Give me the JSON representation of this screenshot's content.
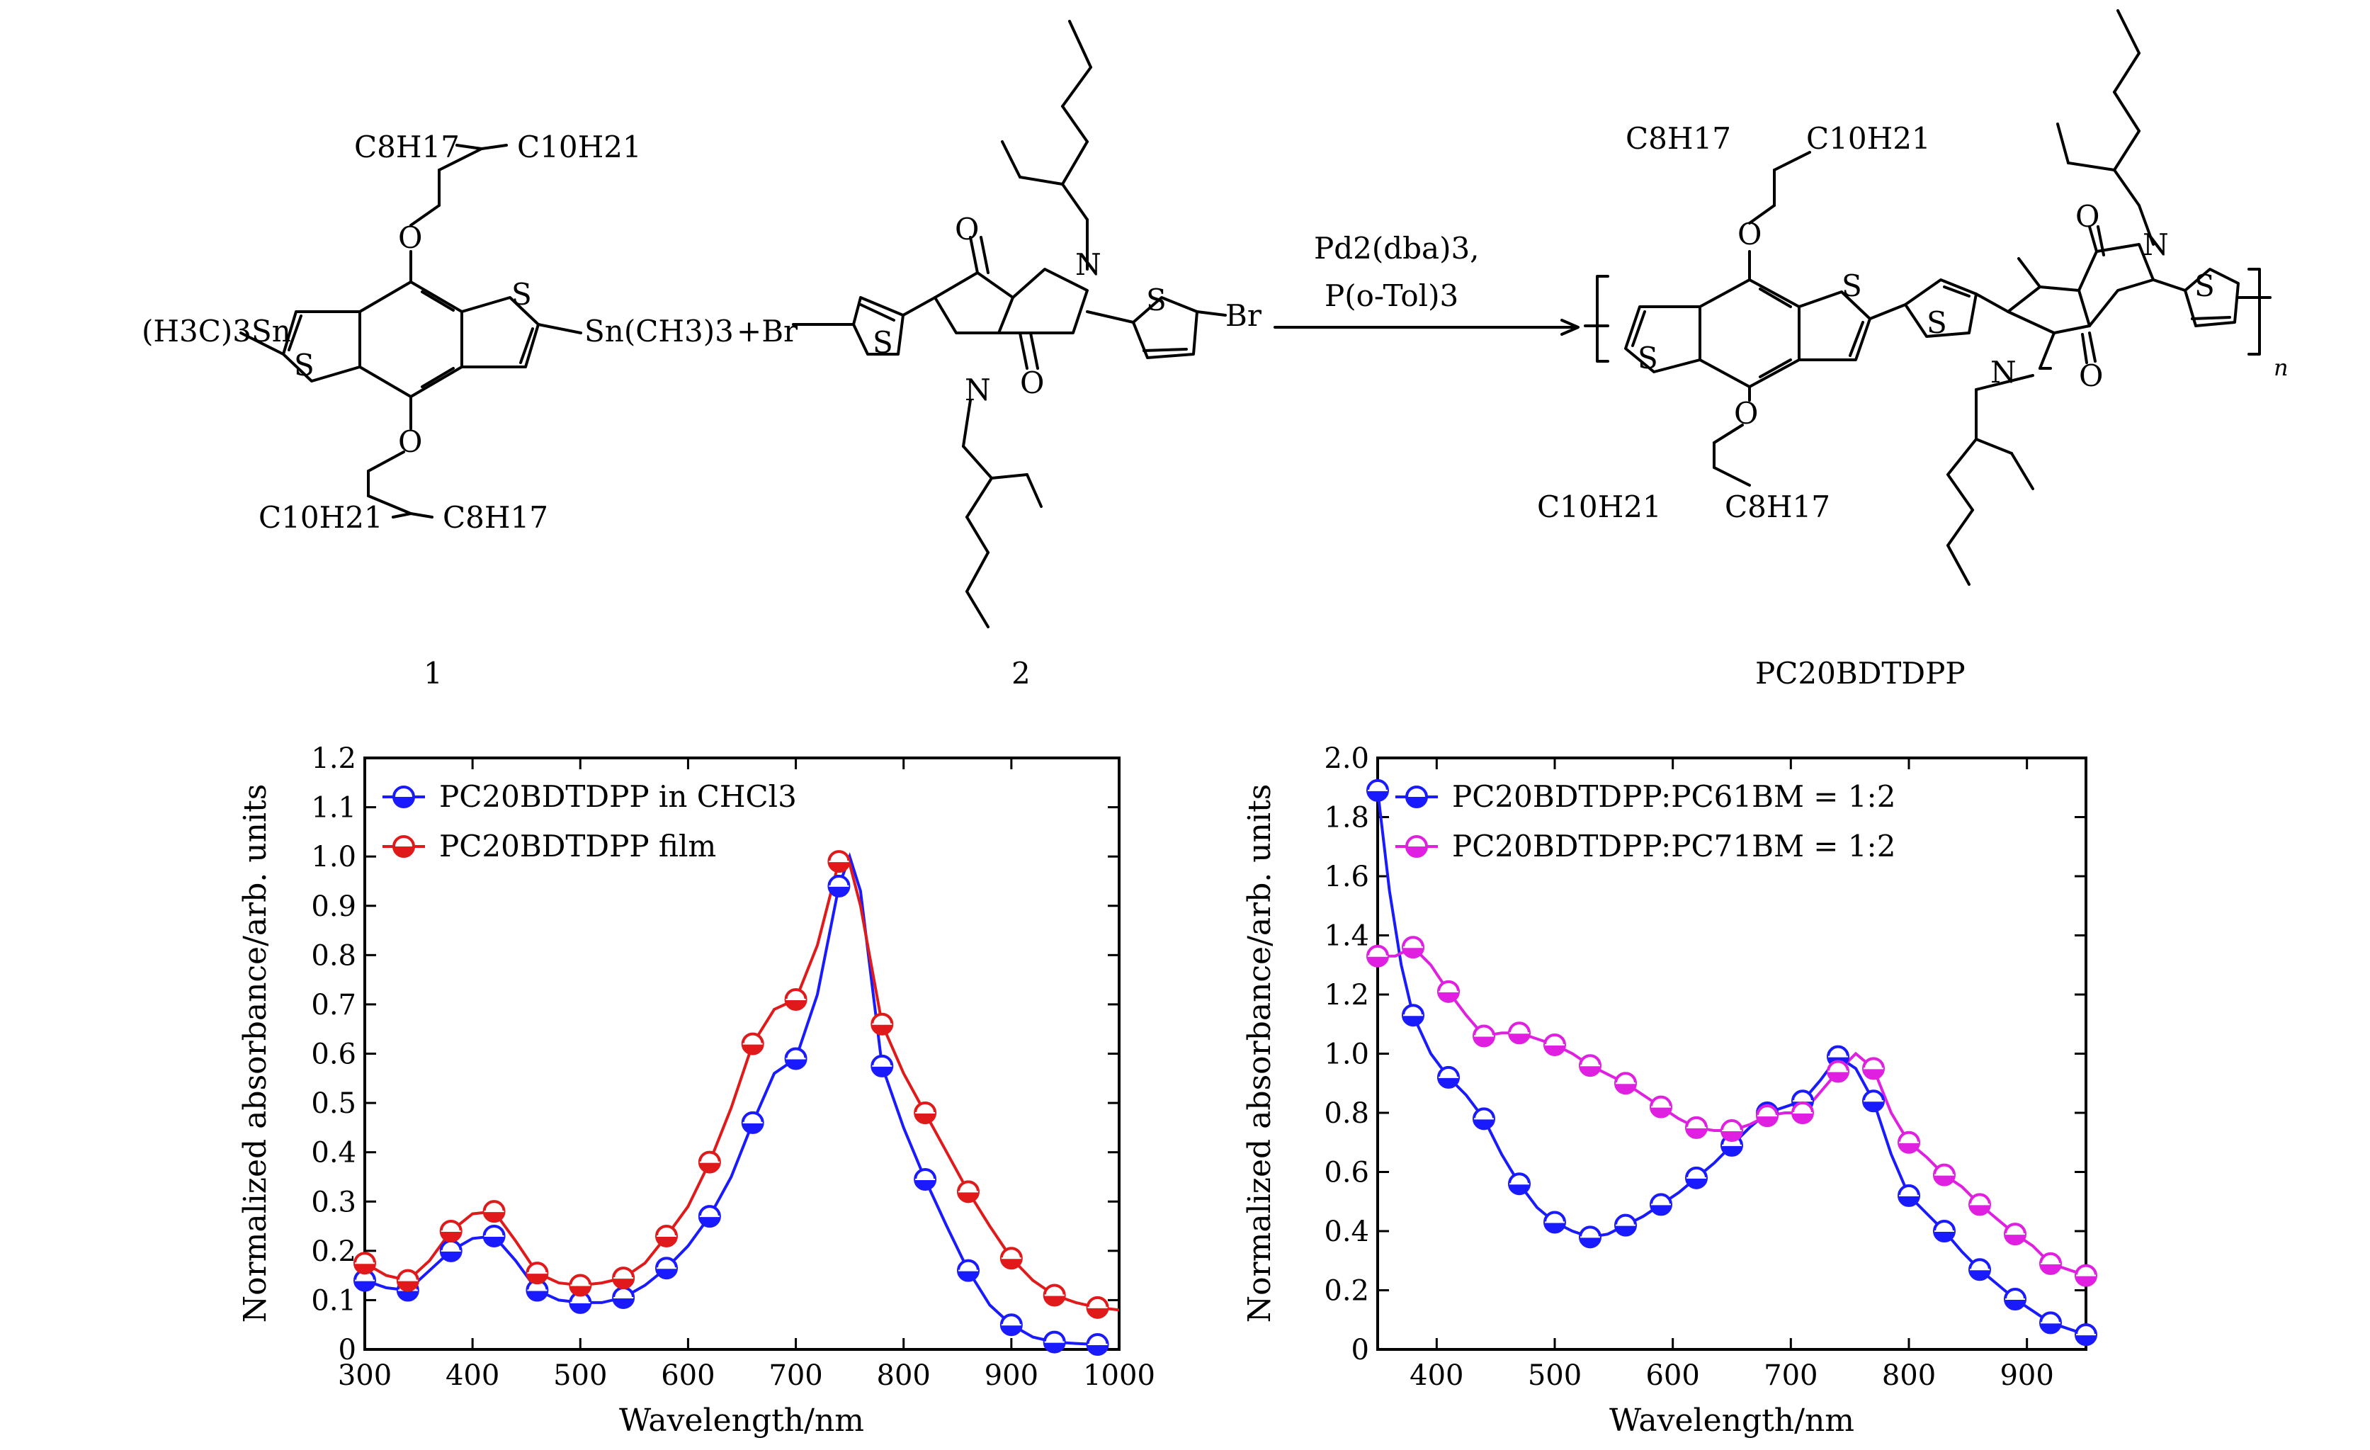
{
  "scheme": {
    "reactant1": {
      "number": "1",
      "top_left": "C8H17",
      "top_right": "C10H21",
      "bottom_left": "C10H21",
      "bottom_right": "C8H17",
      "left_group": "(H3C)3Sn",
      "right_group": "Sn(CH3)3"
    },
    "plus_br": "+Br",
    "reactant2": {
      "number": "2",
      "br_right": "Br"
    },
    "conditions": {
      "line1": "Pd2(dba)3,",
      "line2": "P(o-Tol)3"
    },
    "product": {
      "name": "PC20BDTDPP",
      "top_left": "C8H17",
      "top_right": "C10H21",
      "bottom_left": "C10H21",
      "bottom_right": "C8H17",
      "subscript_n": "n"
    },
    "atoms": {
      "S": "S",
      "O": "O",
      "N": "N"
    }
  },
  "chart_data": [
    {
      "type": "line",
      "xlabel": "Wavelength/nm",
      "ylabel": "Normalized absorbance/arb. units",
      "xlim": [
        300,
        1000
      ],
      "ylim": [
        0,
        1.2
      ],
      "xticks": [
        300,
        400,
        500,
        600,
        700,
        800,
        900,
        1000
      ],
      "yticks": [
        0,
        0.1,
        0.2,
        0.3,
        0.4,
        0.5,
        0.6,
        0.7,
        0.8,
        0.9,
        1.0,
        1.1,
        1.2
      ],
      "legend_position": "top-left",
      "series": [
        {
          "name": "PC20BDTDPP in CHCl3",
          "color": "#1a1aff",
          "marker": "half-filled-circle",
          "x": [
            300,
            340,
            380,
            420,
            460,
            500,
            540,
            580,
            620,
            660,
            700,
            740,
            780,
            820,
            860,
            900,
            940,
            980
          ],
          "y": [
            0.14,
            0.12,
            0.2,
            0.23,
            0.12,
            0.095,
            0.105,
            0.165,
            0.27,
            0.46,
            0.59,
            0.94,
            0.575,
            0.345,
            0.16,
            0.05,
            0.015,
            0.01
          ],
          "curve_x": [
            300,
            320,
            340,
            360,
            380,
            400,
            420,
            440,
            460,
            480,
            500,
            520,
            540,
            560,
            580,
            600,
            620,
            640,
            660,
            680,
            700,
            720,
            740,
            750,
            760,
            780,
            800,
            820,
            840,
            860,
            880,
            900,
            920,
            940,
            960,
            980
          ],
          "curve_y": [
            0.14,
            0.125,
            0.12,
            0.16,
            0.2,
            0.225,
            0.23,
            0.18,
            0.12,
            0.1,
            0.095,
            0.095,
            0.105,
            0.13,
            0.165,
            0.21,
            0.27,
            0.35,
            0.46,
            0.56,
            0.59,
            0.72,
            0.94,
            1.0,
            0.93,
            0.575,
            0.45,
            0.345,
            0.25,
            0.16,
            0.09,
            0.05,
            0.025,
            0.015,
            0.012,
            0.01
          ]
        },
        {
          "name": "PC20BDTDPP film",
          "color": "#e01a1a",
          "marker": "half-filled-circle",
          "x": [
            300,
            340,
            380,
            420,
            460,
            500,
            540,
            580,
            620,
            660,
            700,
            740,
            780,
            820,
            860,
            900,
            940,
            980
          ],
          "y": [
            0.175,
            0.14,
            0.24,
            0.28,
            0.155,
            0.13,
            0.145,
            0.23,
            0.38,
            0.62,
            0.71,
            0.99,
            0.66,
            0.48,
            0.32,
            0.185,
            0.11,
            0.085
          ],
          "curve_x": [
            300,
            320,
            340,
            360,
            380,
            400,
            420,
            440,
            460,
            480,
            500,
            520,
            540,
            560,
            580,
            600,
            620,
            640,
            660,
            680,
            700,
            720,
            740,
            750,
            760,
            780,
            800,
            820,
            840,
            860,
            880,
            900,
            920,
            940,
            960,
            980,
            1000
          ],
          "curve_y": [
            0.175,
            0.15,
            0.14,
            0.18,
            0.24,
            0.275,
            0.28,
            0.22,
            0.155,
            0.135,
            0.13,
            0.135,
            0.145,
            0.175,
            0.23,
            0.29,
            0.38,
            0.49,
            0.62,
            0.69,
            0.71,
            0.82,
            0.99,
            0.985,
            0.9,
            0.66,
            0.56,
            0.48,
            0.4,
            0.32,
            0.25,
            0.185,
            0.14,
            0.11,
            0.095,
            0.085,
            0.08
          ]
        }
      ]
    },
    {
      "type": "line",
      "xlabel": "Wavelength/nm",
      "ylabel": "Normalized absorbance/arb. units",
      "xlim": [
        350,
        950
      ],
      "ylim": [
        0,
        2.0
      ],
      "xticks": [
        400,
        500,
        600,
        700,
        800,
        900
      ],
      "yticks": [
        0,
        0.2,
        0.4,
        0.6,
        0.8,
        1.0,
        1.2,
        1.4,
        1.6,
        1.8,
        2.0
      ],
      "legend_position": "top-left",
      "series": [
        {
          "name": "PC20BDTDPP:PC61BM = 1:2",
          "color": "#1a1aff",
          "marker": "half-filled-circle",
          "x": [
            350,
            380,
            410,
            440,
            470,
            500,
            530,
            560,
            590,
            620,
            650,
            680,
            710,
            740,
            770,
            800,
            830,
            860,
            890,
            920,
            950
          ],
          "y": [
            1.89,
            1.13,
            0.92,
            0.78,
            0.56,
            0.43,
            0.38,
            0.42,
            0.49,
            0.58,
            0.69,
            0.8,
            0.84,
            0.99,
            0.84,
            0.52,
            0.4,
            0.27,
            0.17,
            0.09,
            0.05
          ],
          "curve_x": [
            350,
            360,
            370,
            380,
            395,
            410,
            425,
            440,
            455,
            470,
            485,
            500,
            515,
            530,
            545,
            560,
            575,
            590,
            605,
            620,
            635,
            650,
            665,
            680,
            695,
            710,
            725,
            740,
            755,
            770,
            785,
            800,
            815,
            830,
            845,
            860,
            875,
            890,
            905,
            920,
            935,
            950
          ],
          "curve_y": [
            1.89,
            1.55,
            1.3,
            1.13,
            1.0,
            0.92,
            0.86,
            0.78,
            0.66,
            0.56,
            0.48,
            0.43,
            0.4,
            0.38,
            0.39,
            0.42,
            0.45,
            0.49,
            0.53,
            0.58,
            0.63,
            0.69,
            0.75,
            0.8,
            0.82,
            0.84,
            0.91,
            0.99,
            0.95,
            0.84,
            0.66,
            0.52,
            0.46,
            0.4,
            0.33,
            0.27,
            0.22,
            0.17,
            0.13,
            0.09,
            0.07,
            0.05
          ]
        },
        {
          "name": "PC20BDTDPP:PC71BM = 1:2",
          "color": "#e020e0",
          "marker": "half-filled-circle",
          "x": [
            350,
            380,
            410,
            440,
            470,
            500,
            530,
            560,
            590,
            620,
            650,
            680,
            710,
            740,
            770,
            800,
            830,
            860,
            890,
            920,
            950
          ],
          "y": [
            1.33,
            1.36,
            1.21,
            1.06,
            1.07,
            1.03,
            0.96,
            0.9,
            0.82,
            0.75,
            0.74,
            0.79,
            0.8,
            0.94,
            0.95,
            0.7,
            0.59,
            0.49,
            0.39,
            0.29,
            0.25
          ],
          "curve_x": [
            350,
            365,
            380,
            395,
            410,
            425,
            440,
            455,
            470,
            485,
            500,
            515,
            530,
            545,
            560,
            575,
            590,
            605,
            620,
            635,
            650,
            665,
            680,
            695,
            710,
            725,
            740,
            755,
            770,
            785,
            800,
            815,
            830,
            845,
            860,
            875,
            890,
            905,
            920,
            935,
            950
          ],
          "curve_y": [
            1.33,
            1.33,
            1.36,
            1.3,
            1.21,
            1.13,
            1.06,
            1.07,
            1.07,
            1.05,
            1.03,
            1.0,
            0.96,
            0.93,
            0.9,
            0.86,
            0.82,
            0.78,
            0.75,
            0.74,
            0.74,
            0.76,
            0.79,
            0.8,
            0.8,
            0.87,
            0.94,
            1.0,
            0.95,
            0.8,
            0.7,
            0.65,
            0.59,
            0.55,
            0.49,
            0.44,
            0.39,
            0.35,
            0.29,
            0.27,
            0.25
          ]
        }
      ]
    }
  ]
}
